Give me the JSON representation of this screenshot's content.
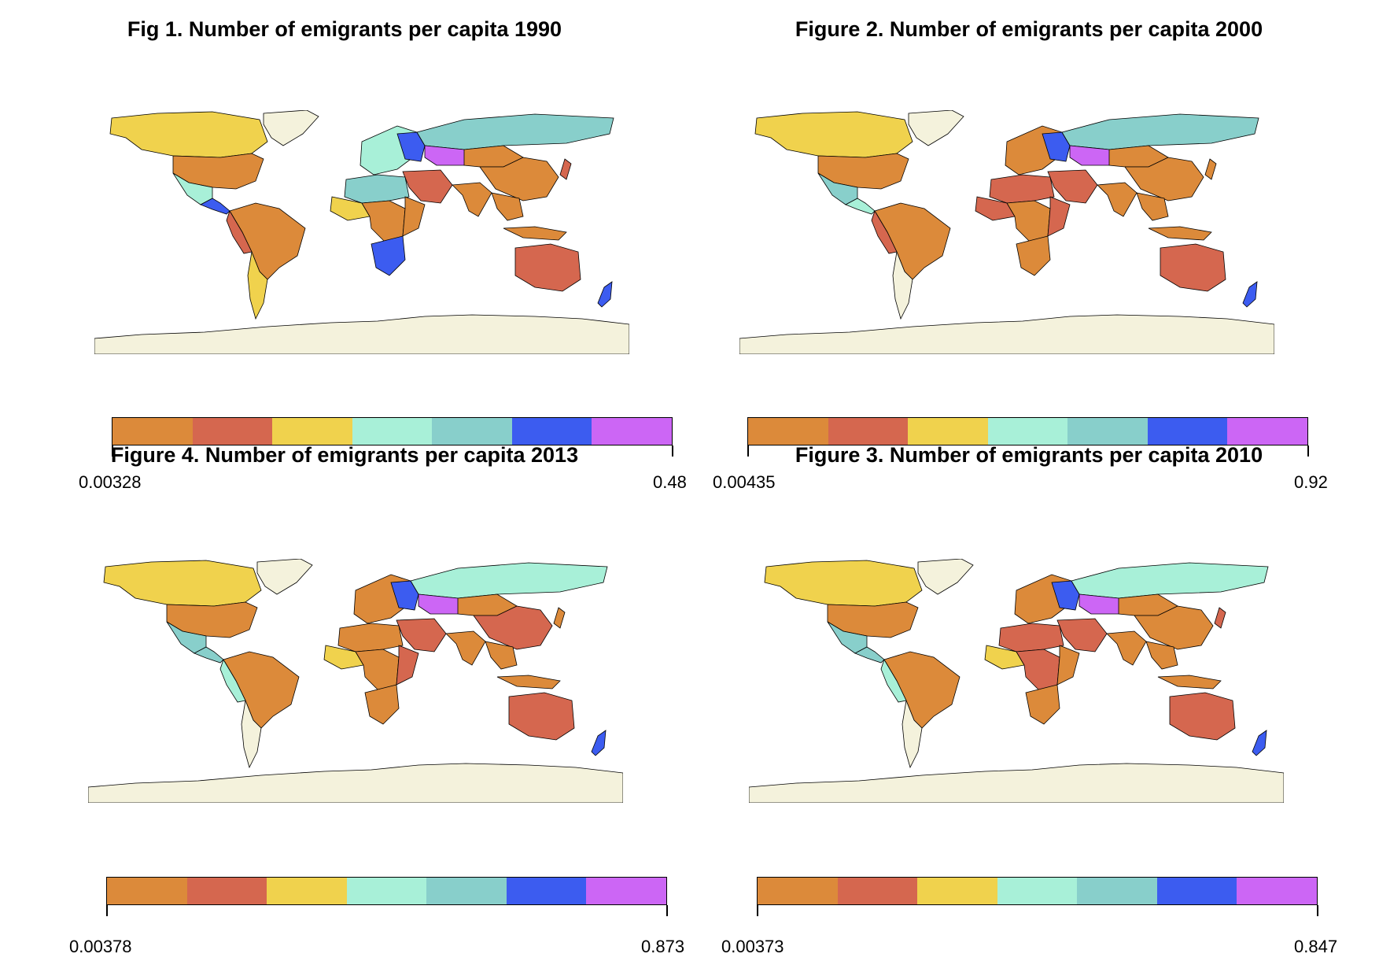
{
  "palette": [
    "#dc8a3a",
    "#d5674f",
    "#f0d24d",
    "#a8f0d8",
    "#88cfcb",
    "#3c5cf0",
    "#cc66f5"
  ],
  "land_default": "#f4f2dc",
  "maps": [
    {
      "title": "Fig 1. Number of emigrants per capita 1990",
      "min_label": "0.00328",
      "max_label": "0.48",
      "year": "1990"
    },
    {
      "title": "Figure 2. Number of emigrants per capita 2000",
      "min_label": "0.00435",
      "max_label": "0.92",
      "year": "2000"
    },
    {
      "title": "Figure 4. Number of emigrants per capita 2013",
      "min_label": "0.00378",
      "max_label": "0.873",
      "year": "2013"
    },
    {
      "title": "Figure 3. Number of emigrants per capita 2010",
      "min_label": "0.00373",
      "max_label": "0.847",
      "year": "2010"
    }
  ],
  "regions": {
    "1990": {
      "north_america": 2,
      "usa": 0,
      "greenland": "land",
      "mexico": 3,
      "central_america": 5,
      "south_america": 0,
      "andes": 1,
      "southern_cone": 2,
      "europe": 3,
      "eastern_europe": 5,
      "russia": 4,
      "kazakhstan": 6,
      "central_asia": 0,
      "china": 0,
      "india": 0,
      "middle_east": 1,
      "north_africa": 4,
      "west_africa": 2,
      "central_africa": 0,
      "east_africa": 0,
      "southern_africa": 5,
      "se_asia": 0,
      "indonesia": 0,
      "australia": 1,
      "new_zealand": 5,
      "japan": 1,
      "antarctica": "land"
    },
    "2000": {
      "north_america": 2,
      "usa": 0,
      "greenland": "land",
      "mexico": 4,
      "central_america": 3,
      "south_america": 0,
      "andes": 1,
      "southern_cone": "land",
      "europe": 0,
      "eastern_europe": 5,
      "russia": 4,
      "kazakhstan": 6,
      "central_asia": 0,
      "china": 0,
      "india": 0,
      "middle_east": 1,
      "north_africa": 1,
      "west_africa": 1,
      "central_africa": 0,
      "east_africa": 1,
      "southern_africa": 0,
      "se_asia": 0,
      "indonesia": 0,
      "australia": 1,
      "new_zealand": 5,
      "japan": 0,
      "antarctica": "land"
    },
    "2013": {
      "north_america": 2,
      "usa": 0,
      "greenland": "land",
      "mexico": 4,
      "central_america": 4,
      "south_america": 0,
      "andes": 3,
      "southern_cone": "land",
      "europe": 0,
      "eastern_europe": 5,
      "russia": 3,
      "kazakhstan": 6,
      "central_asia": 0,
      "china": 1,
      "india": 0,
      "middle_east": 1,
      "north_africa": 0,
      "west_africa": 2,
      "central_africa": 0,
      "east_africa": 1,
      "southern_africa": 0,
      "se_asia": 0,
      "indonesia": 0,
      "australia": 1,
      "new_zealand": 5,
      "japan": 0,
      "antarctica": "land"
    },
    "2010": {
      "north_america": 2,
      "usa": 0,
      "greenland": "land",
      "mexico": 4,
      "central_america": 4,
      "south_america": 0,
      "andes": 3,
      "southern_cone": "land",
      "europe": 0,
      "eastern_europe": 5,
      "russia": 3,
      "kazakhstan": 6,
      "central_asia": 0,
      "china": 0,
      "india": 0,
      "middle_east": 1,
      "north_africa": 1,
      "west_africa": 2,
      "central_africa": 1,
      "east_africa": 0,
      "southern_africa": 0,
      "se_asia": 0,
      "indonesia": 0,
      "australia": 1,
      "new_zealand": 5,
      "japan": 1,
      "antarctica": "land"
    }
  }
}
